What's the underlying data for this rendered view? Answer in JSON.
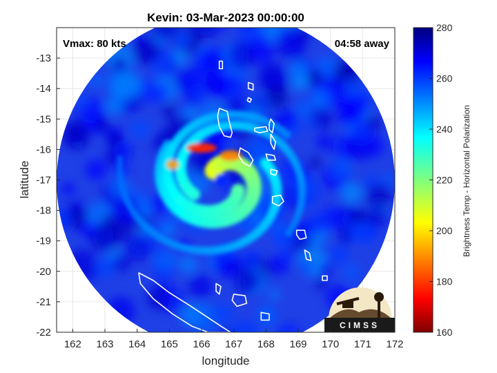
{
  "chart_data": {
    "type": "heatmap",
    "title": "Kevin: 03-Mar-2023 00:00:00",
    "xlabel": "longitude",
    "ylabel": "latitude",
    "xlim": [
      161.5,
      172
    ],
    "ylim": [
      -22,
      -12
    ],
    "xticks": [
      162,
      163,
      164,
      165,
      166,
      167,
      168,
      169,
      170,
      171,
      172
    ],
    "yticks": [
      -13,
      -14,
      -15,
      -16,
      -17,
      -18,
      -19,
      -20,
      -21,
      -22
    ],
    "grid": true,
    "annotations": {
      "vmax": "Vmax: 80 kts",
      "away": "04:58 away"
    },
    "storm_center": {
      "lon": 166.6,
      "lat": -17.0
    },
    "swath": {
      "center_lon": 166.75,
      "center_lat": -17.05,
      "radius_deg": 5.25
    },
    "colorbar": {
      "label": "Brightness Temp - Horizontal Polarization",
      "min": 160,
      "max": 280,
      "ticks": [
        160,
        180,
        200,
        220,
        240,
        260,
        280
      ],
      "colormap": "jet"
    },
    "logo": "CIMSS",
    "coastlines": [
      {
        "name": "espiritu-santo",
        "points": [
          [
            166.55,
            -14.65
          ],
          [
            166.8,
            -14.75
          ],
          [
            166.85,
            -15.05
          ],
          [
            166.95,
            -15.45
          ],
          [
            166.9,
            -15.6
          ],
          [
            166.7,
            -15.55
          ],
          [
            166.55,
            -15.25
          ],
          [
            166.5,
            -14.9
          ]
        ]
      },
      {
        "name": "malakula",
        "points": [
          [
            167.2,
            -15.95
          ],
          [
            167.45,
            -16.1
          ],
          [
            167.6,
            -16.35
          ],
          [
            167.5,
            -16.55
          ],
          [
            167.3,
            -16.45
          ],
          [
            167.15,
            -16.2
          ]
        ]
      },
      {
        "name": "maewo",
        "points": [
          [
            168.15,
            -15.0
          ],
          [
            168.25,
            -15.15
          ],
          [
            168.2,
            -15.45
          ],
          [
            168.1,
            -15.35
          ],
          [
            168.1,
            -15.15
          ]
        ]
      },
      {
        "name": "ambae",
        "points": [
          [
            167.65,
            -15.3
          ],
          [
            168.0,
            -15.25
          ],
          [
            168.05,
            -15.4
          ],
          [
            167.8,
            -15.45
          ],
          [
            167.65,
            -15.4
          ]
        ]
      },
      {
        "name": "pentecost",
        "points": [
          [
            168.15,
            -15.5
          ],
          [
            168.3,
            -15.75
          ],
          [
            168.25,
            -16.0
          ],
          [
            168.15,
            -15.8
          ]
        ]
      },
      {
        "name": "ambrym",
        "points": [
          [
            168.0,
            -16.15
          ],
          [
            168.25,
            -16.2
          ],
          [
            168.3,
            -16.35
          ],
          [
            168.05,
            -16.35
          ]
        ]
      },
      {
        "name": "epi",
        "points": [
          [
            168.15,
            -16.65
          ],
          [
            168.35,
            -16.7
          ],
          [
            168.3,
            -16.85
          ],
          [
            168.15,
            -16.8
          ]
        ]
      },
      {
        "name": "efate",
        "points": [
          [
            168.2,
            -17.55
          ],
          [
            168.45,
            -17.5
          ],
          [
            168.55,
            -17.7
          ],
          [
            168.4,
            -17.85
          ],
          [
            168.2,
            -17.75
          ]
        ]
      },
      {
        "name": "erromango",
        "points": [
          [
            168.95,
            -18.65
          ],
          [
            169.2,
            -18.65
          ],
          [
            169.25,
            -18.9
          ],
          [
            169.05,
            -18.95
          ],
          [
            168.95,
            -18.8
          ]
        ]
      },
      {
        "name": "tanna",
        "points": [
          [
            169.2,
            -19.3
          ],
          [
            169.35,
            -19.4
          ],
          [
            169.4,
            -19.65
          ],
          [
            169.25,
            -19.6
          ]
        ]
      },
      {
        "name": "aneityum",
        "points": [
          [
            169.75,
            -20.15
          ],
          [
            169.9,
            -20.15
          ],
          [
            169.9,
            -20.3
          ],
          [
            169.75,
            -20.3
          ]
        ]
      },
      {
        "name": "torres",
        "points": [
          [
            166.55,
            -13.1
          ],
          [
            166.65,
            -13.1
          ],
          [
            166.65,
            -13.35
          ],
          [
            166.55,
            -13.35
          ]
        ]
      },
      {
        "name": "banks",
        "points": [
          [
            167.45,
            -13.8
          ],
          [
            167.6,
            -13.85
          ],
          [
            167.6,
            -14.05
          ],
          [
            167.45,
            -14.0
          ]
        ]
      },
      {
        "name": "banks-small",
        "points": [
          [
            167.45,
            -14.3
          ],
          [
            167.55,
            -14.35
          ],
          [
            167.5,
            -14.45
          ],
          [
            167.42,
            -14.4
          ]
        ]
      },
      {
        "name": "new-caledonia",
        "points": [
          [
            164.05,
            -20.05
          ],
          [
            164.5,
            -20.3
          ],
          [
            165.0,
            -20.7
          ],
          [
            165.6,
            -21.1
          ],
          [
            166.1,
            -21.45
          ],
          [
            166.6,
            -21.8
          ],
          [
            166.9,
            -22.0
          ],
          [
            166.2,
            -22.0
          ],
          [
            165.7,
            -21.8
          ],
          [
            165.1,
            -21.4
          ],
          [
            164.5,
            -20.9
          ],
          [
            164.1,
            -20.4
          ]
        ]
      },
      {
        "name": "ouvea",
        "points": [
          [
            166.45,
            -20.4
          ],
          [
            166.6,
            -20.5
          ],
          [
            166.55,
            -20.75
          ],
          [
            166.45,
            -20.65
          ]
        ]
      },
      {
        "name": "lifou",
        "points": [
          [
            167.0,
            -20.75
          ],
          [
            167.35,
            -20.8
          ],
          [
            167.4,
            -21.05
          ],
          [
            167.1,
            -21.15
          ],
          [
            166.95,
            -20.95
          ]
        ]
      },
      {
        "name": "mare",
        "points": [
          [
            167.85,
            -21.35
          ],
          [
            168.1,
            -21.4
          ],
          [
            168.1,
            -21.6
          ],
          [
            167.85,
            -21.6
          ]
        ]
      }
    ]
  }
}
